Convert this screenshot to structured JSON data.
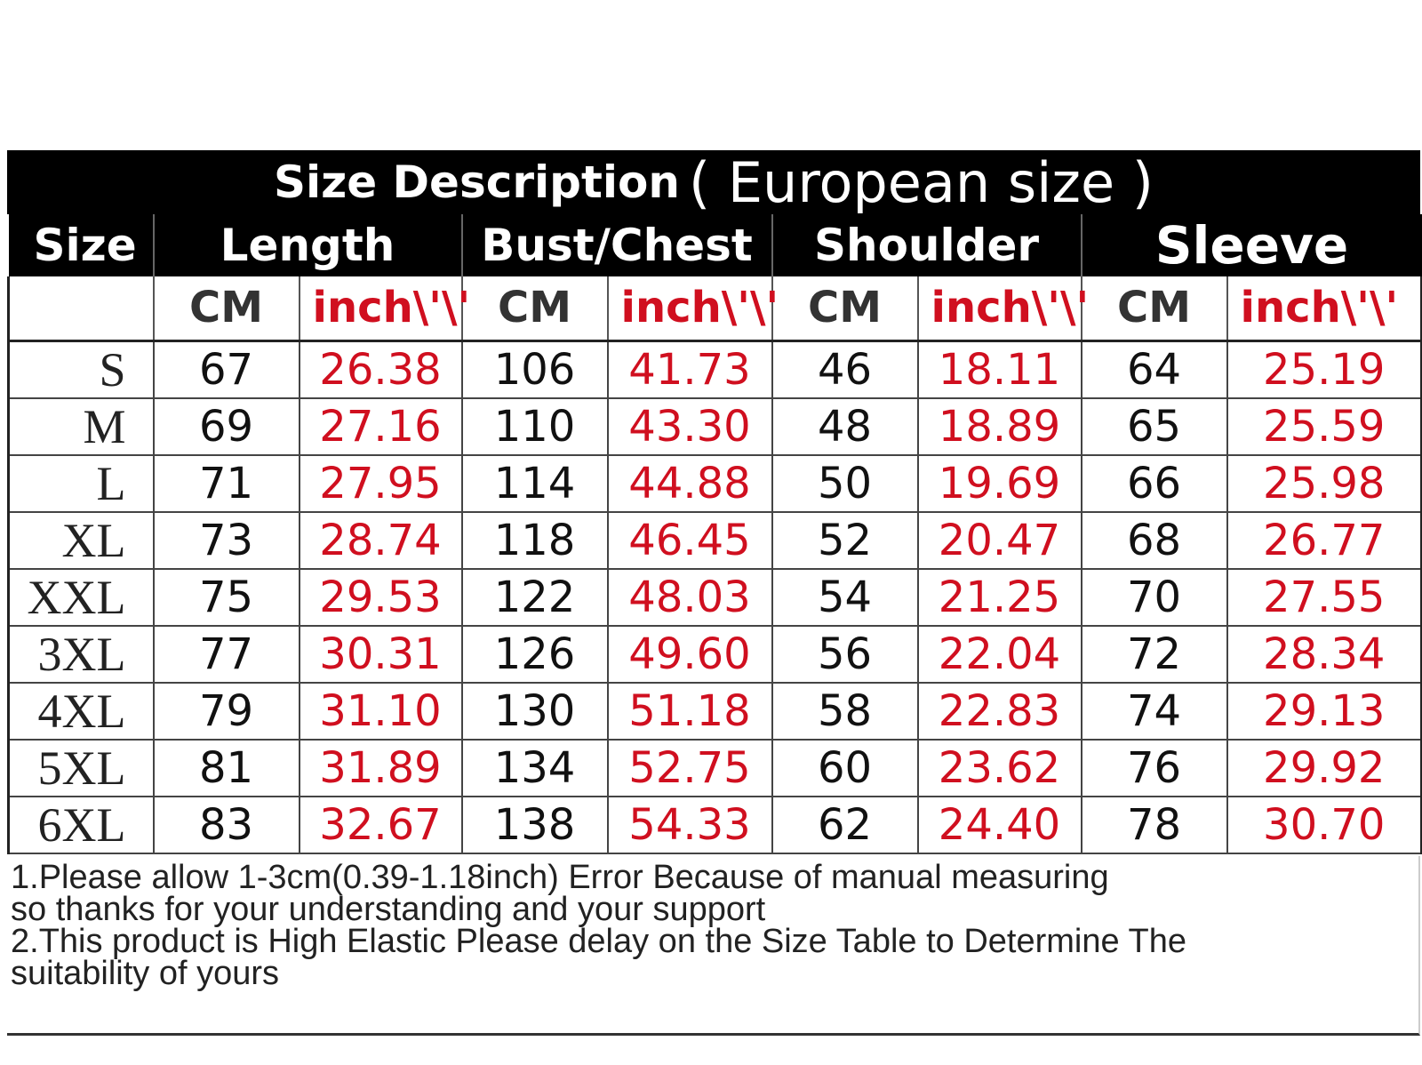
{
  "title": {
    "main": "Size Description",
    "sub": "( European size )"
  },
  "headers": {
    "size": "Size",
    "length": "Length",
    "bust": "Bust/Chest",
    "shoulder": "Shoulder",
    "sleeve": "Sleeve"
  },
  "units": {
    "cm": "CM",
    "inch": "inch\\'\\'"
  },
  "rows": [
    {
      "size": "S",
      "length_cm": "67",
      "length_in": "26.38",
      "bust_cm": "106",
      "bust_in": "41.73",
      "shoulder_cm": "46",
      "shoulder_in": "18.11",
      "sleeve_cm": "64",
      "sleeve_in": "25.19"
    },
    {
      "size": "M",
      "length_cm": "69",
      "length_in": "27.16",
      "bust_cm": "110",
      "bust_in": "43.30",
      "shoulder_cm": "48",
      "shoulder_in": "18.89",
      "sleeve_cm": "65",
      "sleeve_in": "25.59"
    },
    {
      "size": "L",
      "length_cm": "71",
      "length_in": "27.95",
      "bust_cm": "114",
      "bust_in": "44.88",
      "shoulder_cm": "50",
      "shoulder_in": "19.69",
      "sleeve_cm": "66",
      "sleeve_in": "25.98"
    },
    {
      "size": "XL",
      "length_cm": "73",
      "length_in": "28.74",
      "bust_cm": "118",
      "bust_in": "46.45",
      "shoulder_cm": "52",
      "shoulder_in": "20.47",
      "sleeve_cm": "68",
      "sleeve_in": "26.77"
    },
    {
      "size": "XXL",
      "length_cm": "75",
      "length_in": "29.53",
      "bust_cm": "122",
      "bust_in": "48.03",
      "shoulder_cm": "54",
      "shoulder_in": "21.25",
      "sleeve_cm": "70",
      "sleeve_in": "27.55"
    },
    {
      "size": "3XL",
      "length_cm": "77",
      "length_in": "30.31",
      "bust_cm": "126",
      "bust_in": "49.60",
      "shoulder_cm": "56",
      "shoulder_in": "22.04",
      "sleeve_cm": "72",
      "sleeve_in": "28.34"
    },
    {
      "size": "4XL",
      "length_cm": "79",
      "length_in": "31.10",
      "bust_cm": "130",
      "bust_in": "51.18",
      "shoulder_cm": "58",
      "shoulder_in": "22.83",
      "sleeve_cm": "74",
      "sleeve_in": "29.13"
    },
    {
      "size": "5XL",
      "length_cm": "81",
      "length_in": "31.89",
      "bust_cm": "134",
      "bust_in": "52.75",
      "shoulder_cm": "60",
      "shoulder_in": "23.62",
      "sleeve_cm": "76",
      "sleeve_in": "29.92"
    },
    {
      "size": "6XL",
      "length_cm": "83",
      "length_in": "32.67",
      "bust_cm": "138",
      "bust_in": "54.33",
      "shoulder_cm": "62",
      "shoulder_in": "24.40",
      "sleeve_cm": "78",
      "sleeve_in": "30.70"
    }
  ],
  "notes": [
    "1.Please allow 1-3cm(0.39-1.18inch) Error Because of manual measuring",
    "so thanks for your understanding and your support",
    "2.This product is High Elastic Please delay on the Size Table to Determine The",
    "suitability of yours"
  ],
  "colors": {
    "header_bg": "#000000",
    "header_text": "#ffffff",
    "inch_red": "#d00f1f",
    "cm_gray": "#333333"
  }
}
